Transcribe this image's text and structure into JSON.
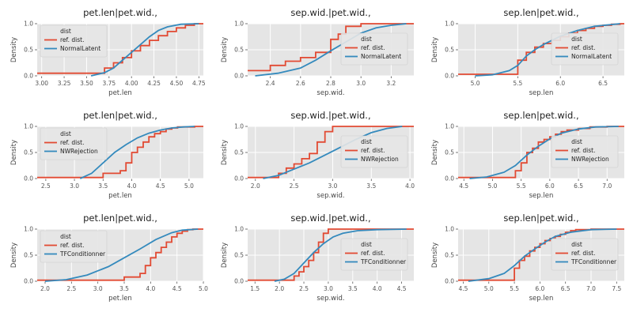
{
  "figure": {
    "colors": {
      "panel": "#e5e5e5",
      "grid": "#ffffff",
      "reference": "#e24a33",
      "model": "#348abd",
      "legend_bg": "#e5e5e5",
      "legend_border": "#cccccc"
    }
  },
  "chart_data": [
    {
      "type": "line",
      "title": "pet.len|pet.wid.,",
      "xlabel": "pet.len",
      "ylabel": "Density",
      "xlim": [
        2.95,
        4.8
      ],
      "ylim": [
        0,
        1
      ],
      "xticks": [
        "3.00",
        "3.25",
        "3.50",
        "3.75",
        "4.00",
        "4.25",
        "4.50",
        "4.75"
      ],
      "yticks": [
        "0.0",
        "0.5",
        "1.0"
      ],
      "legend": {
        "title": "dist",
        "position": "upper-left",
        "entries": [
          "ref. dist.",
          "NormalLatent"
        ]
      },
      "series": [
        {
          "name": "ref. dist.",
          "style": "step",
          "x": [
            3.0,
            3.7,
            3.8,
            3.9,
            4.0,
            4.1,
            4.2,
            4.3,
            4.4,
            4.5,
            4.6,
            4.7
          ],
          "y": [
            0.05,
            0.15,
            0.25,
            0.35,
            0.48,
            0.58,
            0.68,
            0.77,
            0.85,
            0.92,
            0.97,
            1.0
          ]
        },
        {
          "name": "NormalLatent",
          "style": "line",
          "x": [
            3.55,
            3.7,
            3.8,
            3.9,
            4.0,
            4.1,
            4.2,
            4.3,
            4.4,
            4.55,
            4.75
          ],
          "y": [
            0.0,
            0.06,
            0.15,
            0.3,
            0.45,
            0.6,
            0.75,
            0.87,
            0.94,
            0.99,
            1.0
          ]
        }
      ]
    },
    {
      "type": "line",
      "title": "sep.wid.|pet.wid.,",
      "xlabel": "sep.wid.",
      "ylabel": "Density",
      "xlim": [
        2.25,
        3.35
      ],
      "ylim": [
        0,
        1
      ],
      "xticks": [
        "2.4",
        "2.6",
        "2.8",
        "3.0",
        "3.2"
      ],
      "yticks": [
        "0.0",
        "0.5",
        "1.0"
      ],
      "legend": {
        "title": "dist",
        "position": "right",
        "entries": [
          "ref. dist.",
          "NormalLatent"
        ]
      },
      "series": [
        {
          "name": "ref. dist.",
          "style": "step",
          "x": [
            2.3,
            2.4,
            2.5,
            2.6,
            2.7,
            2.8,
            2.85,
            2.9,
            3.0,
            3.3
          ],
          "y": [
            0.1,
            0.2,
            0.28,
            0.35,
            0.45,
            0.7,
            0.8,
            0.95,
            1.0,
            1.0
          ]
        },
        {
          "name": "NormalLatent",
          "style": "line",
          "x": [
            2.3,
            2.45,
            2.6,
            2.7,
            2.8,
            2.9,
            3.0,
            3.1,
            3.2,
            3.3
          ],
          "y": [
            0.0,
            0.05,
            0.15,
            0.3,
            0.48,
            0.65,
            0.82,
            0.92,
            0.97,
            1.0
          ]
        }
      ]
    },
    {
      "type": "line",
      "title": "sep.len|pet.wid.,",
      "xlabel": "sep.len",
      "ylabel": "Density",
      "xlim": [
        4.8,
        6.75
      ],
      "ylim": [
        0,
        1
      ],
      "xticks": [
        "5.0",
        "5.5",
        "6.0",
        "6.5"
      ],
      "yticks": [
        "0.0",
        "0.5",
        "1.0"
      ],
      "legend": {
        "title": "dist",
        "position": "right",
        "entries": [
          "ref. dist.",
          "NormalLatent"
        ]
      },
      "series": [
        {
          "name": "ref. dist.",
          "style": "step",
          "x": [
            5.1,
            5.5,
            5.6,
            5.7,
            5.8,
            5.9,
            6.0,
            6.1,
            6.2,
            6.3,
            6.4,
            6.5,
            6.6,
            6.7
          ],
          "y": [
            0.03,
            0.3,
            0.45,
            0.55,
            0.62,
            0.68,
            0.75,
            0.82,
            0.87,
            0.91,
            0.95,
            0.97,
            0.99,
            1.0
          ]
        },
        {
          "name": "NormalLatent",
          "style": "line",
          "x": [
            5.0,
            5.2,
            5.4,
            5.5,
            5.6,
            5.7,
            5.8,
            5.9,
            6.0,
            6.2,
            6.4,
            6.7
          ],
          "y": [
            0.0,
            0.02,
            0.1,
            0.2,
            0.38,
            0.5,
            0.6,
            0.68,
            0.76,
            0.87,
            0.95,
            1.0
          ]
        }
      ]
    },
    {
      "type": "line",
      "title": "pet.len|pet.wid.,",
      "xlabel": "pet.len",
      "ylabel": "Density",
      "xlim": [
        2.35,
        5.25
      ],
      "ylim": [
        0,
        1
      ],
      "xticks": [
        "2.5",
        "3.0",
        "3.5",
        "4.0",
        "4.5",
        "5.0"
      ],
      "yticks": [
        "0.0",
        "0.5",
        "1.0"
      ],
      "legend": {
        "title": "dist",
        "position": "upper-left",
        "entries": [
          "ref. dist.",
          "NWRejection"
        ]
      },
      "series": [
        {
          "name": "ref. dist.",
          "style": "step",
          "x": [
            3.0,
            3.5,
            3.8,
            3.9,
            4.0,
            4.1,
            4.2,
            4.3,
            4.4,
            4.5,
            4.6,
            4.7,
            4.8,
            5.1
          ],
          "y": [
            0.02,
            0.1,
            0.15,
            0.3,
            0.5,
            0.6,
            0.7,
            0.8,
            0.86,
            0.9,
            0.95,
            0.97,
            0.99,
            1.0
          ]
        },
        {
          "name": "NWRejection",
          "style": "line",
          "x": [
            3.1,
            3.3,
            3.5,
            3.7,
            3.9,
            4.1,
            4.3,
            4.5,
            4.7,
            4.9,
            5.1
          ],
          "y": [
            0.0,
            0.1,
            0.3,
            0.5,
            0.65,
            0.78,
            0.87,
            0.93,
            0.97,
            0.99,
            1.0
          ]
        }
      ]
    },
    {
      "type": "line",
      "title": "sep.wid.|pet.wid.,",
      "xlabel": "sep.wid.",
      "ylabel": "Density",
      "xlim": [
        1.9,
        4.05
      ],
      "ylim": [
        0,
        1
      ],
      "xticks": [
        "2.0",
        "2.5",
        "3.0",
        "3.5",
        "4.0"
      ],
      "yticks": [
        "0.0",
        "0.5",
        "1.0"
      ],
      "legend": {
        "title": "dist",
        "position": "right",
        "entries": [
          "ref. dist.",
          "NWRejection"
        ]
      },
      "series": [
        {
          "name": "ref. dist.",
          "style": "step",
          "x": [
            2.0,
            2.3,
            2.4,
            2.5,
            2.6,
            2.7,
            2.8,
            2.9,
            3.0,
            4.0
          ],
          "y": [
            0.02,
            0.1,
            0.2,
            0.28,
            0.38,
            0.48,
            0.7,
            0.9,
            1.0,
            1.0
          ]
        },
        {
          "name": "NWRejection",
          "style": "line",
          "x": [
            2.1,
            2.3,
            2.5,
            2.7,
            2.9,
            3.1,
            3.3,
            3.5,
            3.7,
            3.9
          ],
          "y": [
            0.0,
            0.06,
            0.18,
            0.3,
            0.45,
            0.6,
            0.75,
            0.88,
            0.96,
            1.0
          ]
        }
      ]
    },
    {
      "type": "line",
      "title": "sep.len|pet.wid.,",
      "xlabel": "sep.len",
      "ylabel": "Density",
      "xlim": [
        4.4,
        7.3
      ],
      "ylim": [
        0,
        1
      ],
      "xticks": [
        "4.5",
        "5.0",
        "5.5",
        "6.0",
        "6.5",
        "7.0"
      ],
      "yticks": [
        "0.0",
        "0.5",
        "1.0"
      ],
      "legend": {
        "title": "dist",
        "position": "right",
        "entries": [
          "ref. dist.",
          "NWRejection"
        ]
      },
      "series": [
        {
          "name": "ref. dist.",
          "style": "step",
          "x": [
            5.0,
            5.4,
            5.5,
            5.6,
            5.7,
            5.8,
            5.9,
            6.0,
            6.1,
            6.2,
            6.3,
            6.5,
            6.7,
            7.0
          ],
          "y": [
            0.02,
            0.15,
            0.3,
            0.5,
            0.58,
            0.7,
            0.75,
            0.8,
            0.85,
            0.9,
            0.93,
            0.96,
            0.99,
            1.0
          ]
        },
        {
          "name": "NWRejection",
          "style": "line",
          "x": [
            4.6,
            4.9,
            5.2,
            5.4,
            5.6,
            5.8,
            6.0,
            6.2,
            6.5,
            6.8,
            7.2
          ],
          "y": [
            0.0,
            0.03,
            0.12,
            0.25,
            0.45,
            0.62,
            0.76,
            0.87,
            0.95,
            0.99,
            1.0
          ]
        }
      ]
    },
    {
      "type": "line",
      "title": "pet.len|pet.wid.,",
      "xlabel": "pet.len",
      "ylabel": "Density",
      "xlim": [
        1.85,
        5.0
      ],
      "ylim": [
        0,
        1
      ],
      "xticks": [
        "2.0",
        "2.5",
        "3.0",
        "3.5",
        "4.0",
        "4.5",
        "5.0"
      ],
      "yticks": [
        "0.0",
        "0.5",
        "1.0"
      ],
      "legend": {
        "title": "dist",
        "position": "upper-left",
        "entries": [
          "ref. dist.",
          "TFConditionner"
        ]
      },
      "series": [
        {
          "name": "ref. dist.",
          "style": "step",
          "x": [
            3.0,
            3.5,
            3.8,
            3.9,
            4.0,
            4.1,
            4.2,
            4.3,
            4.4,
            4.5,
            4.6,
            4.7,
            4.8
          ],
          "y": [
            0.02,
            0.08,
            0.15,
            0.3,
            0.45,
            0.55,
            0.65,
            0.75,
            0.85,
            0.92,
            0.96,
            0.99,
            1.0
          ]
        },
        {
          "name": "TFConditionner",
          "style": "line",
          "x": [
            2.0,
            2.4,
            2.8,
            3.2,
            3.5,
            3.8,
            4.1,
            4.4,
            4.6,
            4.9
          ],
          "y": [
            0.0,
            0.03,
            0.12,
            0.28,
            0.45,
            0.62,
            0.8,
            0.93,
            0.98,
            1.0
          ]
        }
      ]
    },
    {
      "type": "line",
      "title": "sep.wid.|pet.wid.,",
      "xlabel": "sep.wid.",
      "ylabel": "Density",
      "xlim": [
        1.35,
        4.75
      ],
      "ylim": [
        0,
        1
      ],
      "xticks": [
        "1.5",
        "2.0",
        "2.5",
        "3.0",
        "3.5",
        "4.0",
        "4.5"
      ],
      "yticks": [
        "0.0",
        "0.5",
        "1.0"
      ],
      "legend": {
        "title": "dist",
        "position": "right",
        "entries": [
          "ref. dist.",
          "TFConditionner"
        ]
      },
      "series": [
        {
          "name": "ref. dist.",
          "style": "step",
          "x": [
            2.2,
            2.3,
            2.4,
            2.5,
            2.6,
            2.7,
            2.8,
            2.9,
            3.0,
            4.6
          ],
          "y": [
            0.02,
            0.1,
            0.18,
            0.28,
            0.4,
            0.55,
            0.75,
            0.92,
            1.0,
            1.0
          ]
        },
        {
          "name": "TFConditionner",
          "style": "line",
          "x": [
            1.9,
            2.1,
            2.3,
            2.5,
            2.7,
            2.9,
            3.1,
            3.3,
            3.6,
            4.0,
            4.6
          ],
          "y": [
            0.0,
            0.04,
            0.15,
            0.35,
            0.55,
            0.72,
            0.85,
            0.92,
            0.97,
            0.99,
            1.0
          ]
        }
      ]
    },
    {
      "type": "line",
      "title": "sep.len|pet.wid.,",
      "xlabel": "sep.len",
      "ylabel": "Density",
      "xlim": [
        4.4,
        7.65
      ],
      "ylim": [
        0,
        1
      ],
      "xticks": [
        "4.5",
        "5.0",
        "5.5",
        "6.0",
        "6.5",
        "7.0",
        "7.5"
      ],
      "yticks": [
        "0.0",
        "0.5",
        "1.0"
      ],
      "legend": {
        "title": "dist",
        "position": "right",
        "entries": [
          "ref. dist.",
          "TFConditionner"
        ]
      },
      "series": [
        {
          "name": "ref. dist.",
          "style": "step",
          "x": [
            5.0,
            5.5,
            5.6,
            5.7,
            5.8,
            5.9,
            6.0,
            6.1,
            6.2,
            6.3,
            6.4,
            6.5,
            6.6,
            6.7,
            7.0
          ],
          "y": [
            0.02,
            0.25,
            0.4,
            0.48,
            0.58,
            0.65,
            0.72,
            0.78,
            0.82,
            0.86,
            0.9,
            0.94,
            0.97,
            0.99,
            1.0
          ]
        },
        {
          "name": "TFConditionner",
          "style": "line",
          "x": [
            4.6,
            5.0,
            5.3,
            5.5,
            5.7,
            5.9,
            6.1,
            6.3,
            6.6,
            7.0,
            7.5
          ],
          "y": [
            0.0,
            0.05,
            0.15,
            0.3,
            0.48,
            0.62,
            0.75,
            0.86,
            0.94,
            0.99,
            1.0
          ]
        }
      ]
    }
  ]
}
